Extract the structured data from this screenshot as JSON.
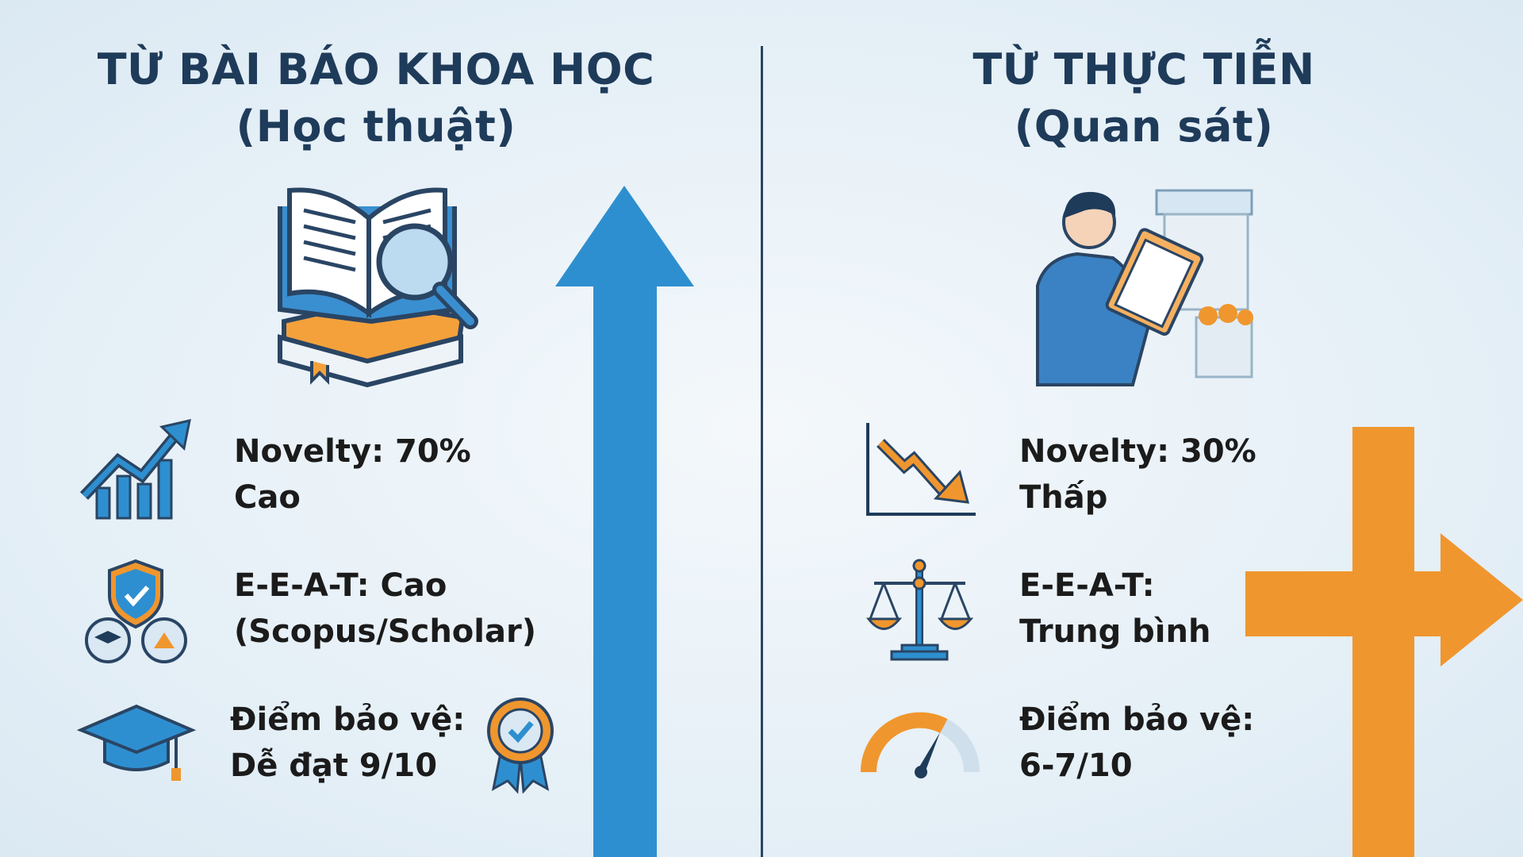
{
  "colors": {
    "blue": "#2e8fd0",
    "orange": "#f0962e",
    "navy": "#1f3b5a",
    "text": "#1b1b1b"
  },
  "left": {
    "title": "TỪ BÀI BÁO KHOA HỌC",
    "subtitle": "(Học thuật)",
    "illustration": "open-book-magnifier-icon",
    "arrow": "up-arrow",
    "rows": [
      {
        "icon": "trending-up-chart-icon",
        "line1": "Novelty: 70%",
        "line2": "Cao"
      },
      {
        "icon": "shield-check-icon",
        "line1": "E-E-A-T: Cao",
        "line2": "(Scopus/Scholar)"
      },
      {
        "icon": "graduation-cap-icon",
        "line1": "Điểm bảo vệ:",
        "line2": "Dễ đạt 9/10",
        "badge": "award-badge-icon"
      }
    ]
  },
  "right": {
    "title": "TỪ THỰC TIỄN",
    "subtitle": "(Quan sát)",
    "illustration": "person-clipboard-market-icon",
    "arrow": "turn-right-arrow",
    "rows": [
      {
        "icon": "trending-down-chart-icon",
        "line1": "Novelty: 30%",
        "line2": "Thấp"
      },
      {
        "icon": "balance-scale-icon",
        "line1": "E-E-A-T:",
        "line2": "Trung bình"
      },
      {
        "icon": "gauge-icon",
        "line1": "Điểm bảo vệ:",
        "line2": "6-7/10"
      }
    ]
  }
}
